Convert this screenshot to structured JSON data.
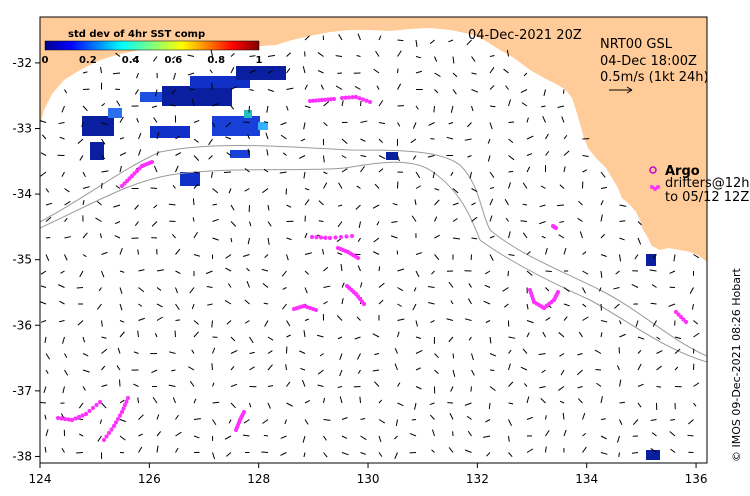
{
  "map": {
    "date_label": "04-Dec-2021 20Z",
    "product_lines": [
      "NRT00 GSL",
      "04-Dec 18:00Z",
      "0.5m/s (1kt 24h)"
    ],
    "colorbar": {
      "title": "std dev of 4hr SST comp",
      "ticks": [
        "0",
        "0.2",
        "0.4",
        "0.6",
        "0.8",
        "1"
      ]
    },
    "legend": {
      "argo_label": "Argo",
      "drifters_label": "drifters@12h",
      "drifters_to_label": "to 05/12 12Z"
    },
    "credit": "© IMOS 09-Dec-2021 08:26 Hobart",
    "lon_ticks": [
      "124",
      "126",
      "128",
      "130",
      "132",
      "134",
      "136"
    ],
    "lat_ticks": [
      "-32",
      "-33",
      "-34",
      "-35",
      "-36",
      "-37",
      "-38"
    ],
    "colors": {
      "land": "#FFCC99",
      "drifter": "#FF33FF",
      "argo": "#CC00CC",
      "isobath": "#9a9a9a",
      "vector": "#000000"
    }
  }
}
